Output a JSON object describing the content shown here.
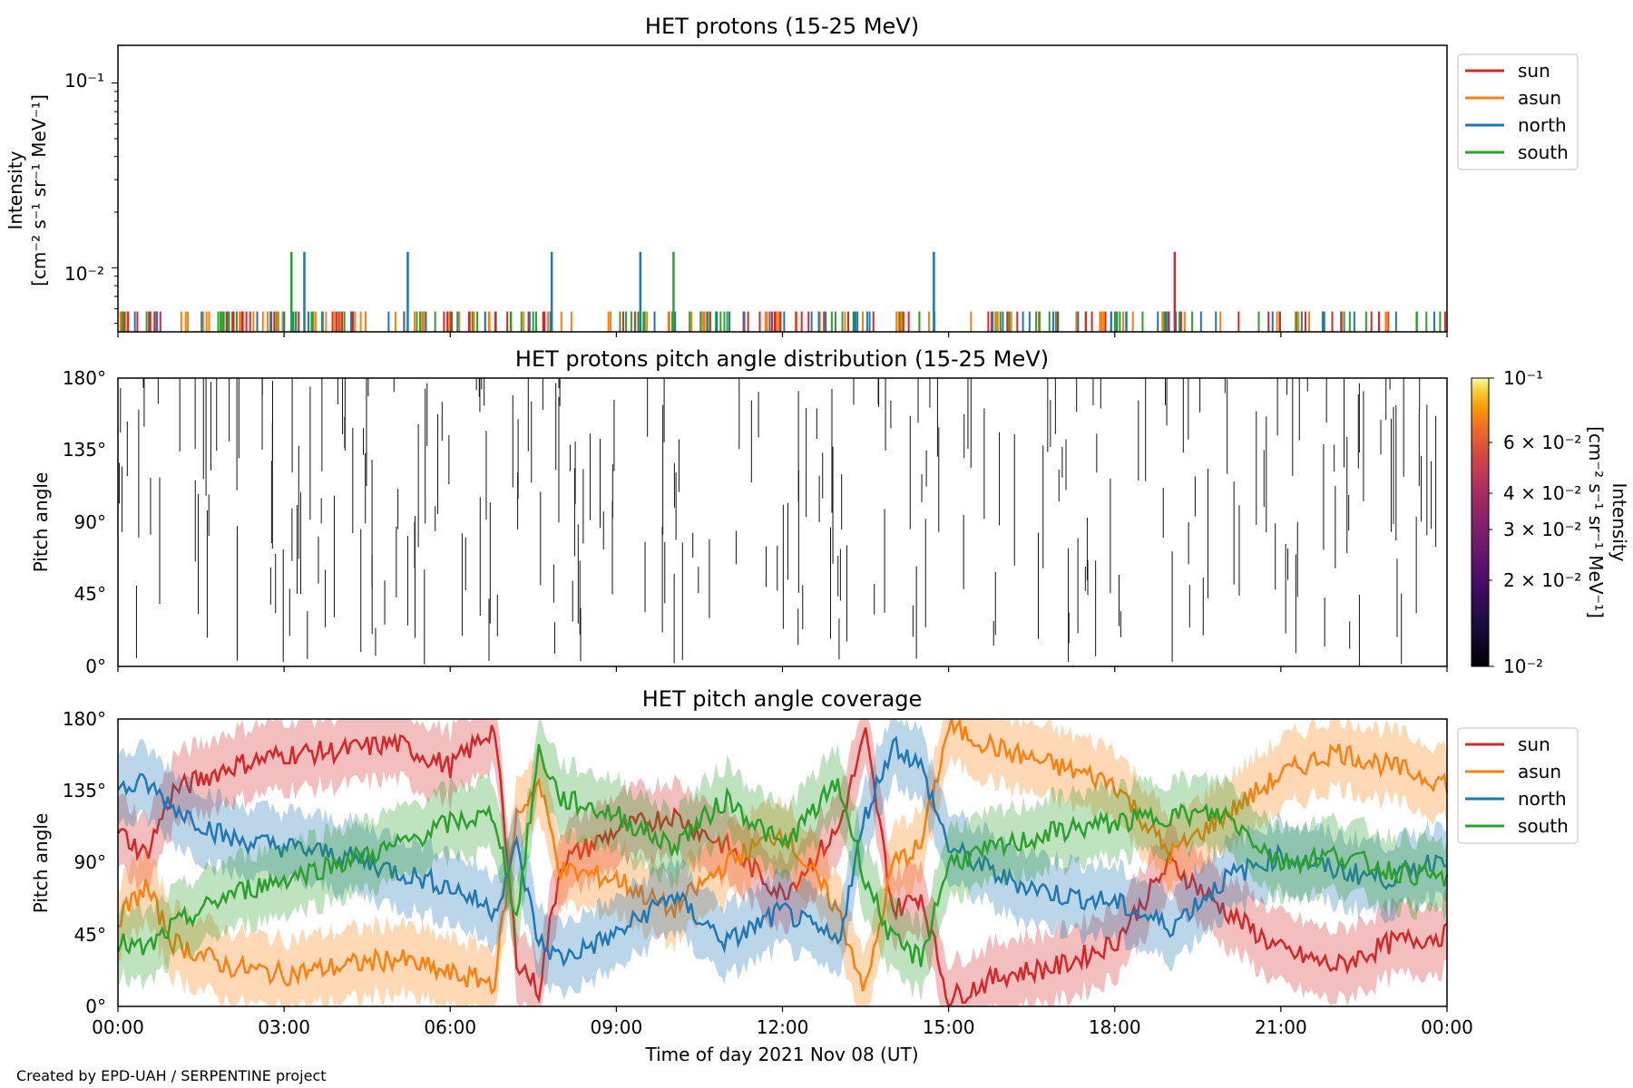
{
  "figure": {
    "credit": "Created by EPD-UAH / SERPENTINE project",
    "xlabel": "Time of day 2021 Nov 08 (UT)",
    "xticks": [
      "00:00",
      "03:00",
      "06:00",
      "09:00",
      "12:00",
      "15:00",
      "18:00",
      "21:00",
      "00:00"
    ]
  },
  "chart_data": [
    {
      "type": "line",
      "title": "HET protons (15-25 MeV)",
      "ylabel": "Intensity",
      "yunit": "[cm⁻² s⁻¹ sr⁻¹ MeV⁻¹]",
      "yscale": "log",
      "ylim": [
        0.0045,
        0.16
      ],
      "yticks": [
        "10⁻¹",
        "10⁻²"
      ],
      "x_hours_range": [
        0,
        24
      ],
      "legend": [
        "sun",
        "asun",
        "north",
        "south"
      ],
      "legend_position": "outside right",
      "colors": {
        "sun": "#d62728",
        "asun": "#ff7f0e",
        "north": "#1f77b4",
        "south": "#2ca02c"
      },
      "baseline_value": 0.0058,
      "spikes": [
        {
          "series": "south",
          "time": "03:08",
          "value": 0.0122
        },
        {
          "series": "north",
          "time": "03:22",
          "value": 0.0122
        },
        {
          "series": "north",
          "time": "05:14",
          "value": 0.0122
        },
        {
          "series": "north",
          "time": "07:50",
          "value": 0.0122
        },
        {
          "series": "north",
          "time": "09:26",
          "value": 0.0122
        },
        {
          "series": "south",
          "time": "10:02",
          "value": 0.0122
        },
        {
          "series": "north",
          "time": "14:44",
          "value": 0.0122
        },
        {
          "series": "sun",
          "time": "19:05",
          "value": 0.0122
        }
      ]
    },
    {
      "type": "heatmap",
      "title": "HET protons pitch angle distribution (15-25 MeV)",
      "ylabel": "Pitch angle",
      "ylim": [
        0,
        180
      ],
      "yticks": [
        "180°",
        "135°",
        "90°",
        "45°",
        "0°"
      ],
      "colorbar": {
        "label": "Intensity",
        "unit": "[cm⁻² s⁻¹ sr⁻¹ MeV⁻¹]",
        "scale": "log",
        "range": [
          0.01,
          0.1
        ],
        "ticks": [
          "10⁻¹",
          "6 × 10⁻²",
          "4 × 10⁻²",
          "3 × 10⁻²",
          "2 × 10⁻²",
          "10⁻²"
        ],
        "colormap": "inferno"
      },
      "note": "sparse single-count events rendered as thin dark vertical marks"
    },
    {
      "type": "area",
      "title": "HET pitch angle coverage",
      "ylabel": "Pitch angle",
      "ylim": [
        0,
        180
      ],
      "yticks": [
        "180°",
        "135°",
        "90°",
        "45°",
        "0°"
      ],
      "legend": [
        "sun",
        "asun",
        "north",
        "south"
      ],
      "legend_position": "outside right",
      "colors": {
        "sun": "#d62728",
        "asun": "#ff7f0e",
        "north": "#1f77b4",
        "south": "#2ca02c"
      },
      "series": [
        {
          "name": "sun",
          "x_hours": [
            0,
            0.5,
            1,
            2,
            3,
            4,
            5,
            6,
            6.8,
            7.2,
            7.6,
            8,
            9,
            10,
            11,
            12,
            13,
            13.5,
            14,
            14.5,
            15,
            16,
            17,
            18,
            19,
            20,
            21,
            22,
            23,
            24
          ],
          "values": [
            110,
            95,
            135,
            150,
            158,
            160,
            165,
            150,
            175,
            30,
            10,
            90,
            110,
            120,
            100,
            70,
            110,
            170,
            60,
            70,
            5,
            20,
            25,
            40,
            90,
            60,
            35,
            25,
            40,
            45
          ]
        },
        {
          "name": "asun",
          "x_hours": [
            0,
            0.5,
            1,
            2,
            3,
            4,
            5,
            6,
            6.8,
            7.2,
            7.6,
            8,
            9,
            10,
            11,
            12,
            13,
            13.5,
            14,
            14.5,
            15,
            16,
            17,
            18,
            19,
            20,
            21,
            22,
            23,
            24
          ],
          "values": [
            55,
            75,
            40,
            25,
            20,
            25,
            30,
            20,
            15,
            120,
            140,
            85,
            80,
            60,
            90,
            110,
            60,
            10,
            90,
            100,
            175,
            160,
            150,
            140,
            95,
            120,
            145,
            160,
            150,
            140
          ]
        },
        {
          "name": "north",
          "x_hours": [
            0,
            0.5,
            1,
            2,
            3,
            4,
            5,
            6,
            6.8,
            7.2,
            7.6,
            8,
            9,
            10,
            11,
            12,
            13,
            13.5,
            14,
            14.5,
            15,
            16,
            17,
            18,
            19,
            20,
            21,
            22,
            23,
            24
          ],
          "values": [
            135,
            140,
            125,
            105,
            100,
            95,
            85,
            75,
            60,
            100,
            40,
            30,
            45,
            70,
            40,
            60,
            40,
            120,
            165,
            150,
            100,
            80,
            70,
            65,
            50,
            80,
            95,
            85,
            80,
            95
          ]
        },
        {
          "name": "south",
          "x_hours": [
            0,
            0.5,
            1,
            2,
            3,
            4,
            5,
            6,
            6.8,
            7.2,
            7.6,
            8,
            9,
            10,
            11,
            12,
            13,
            13.5,
            14,
            14.5,
            15,
            16,
            17,
            18,
            19,
            20,
            21,
            22,
            23,
            24
          ],
          "values": [
            40,
            35,
            50,
            70,
            80,
            90,
            100,
            115,
            120,
            55,
            160,
            130,
            120,
            100,
            130,
            100,
            140,
            80,
            40,
            30,
            90,
            100,
            110,
            115,
            120,
            120,
            90,
            95,
            85,
            80
          ]
        }
      ],
      "band_halfwidth_deg": 22
    }
  ]
}
